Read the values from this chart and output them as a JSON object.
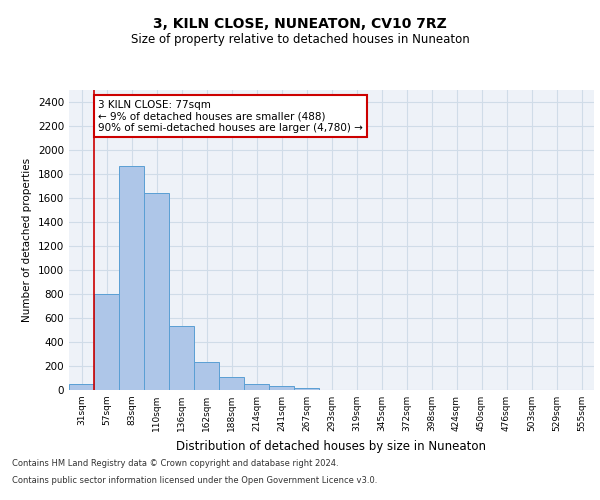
{
  "title": "3, KILN CLOSE, NUNEATON, CV10 7RZ",
  "subtitle": "Size of property relative to detached houses in Nuneaton",
  "xlabel": "Distribution of detached houses by size in Nuneaton",
  "ylabel": "Number of detached properties",
  "bin_labels": [
    "31sqm",
    "57sqm",
    "83sqm",
    "110sqm",
    "136sqm",
    "162sqm",
    "188sqm",
    "214sqm",
    "241sqm",
    "267sqm",
    "293sqm",
    "319sqm",
    "345sqm",
    "372sqm",
    "398sqm",
    "424sqm",
    "450sqm",
    "476sqm",
    "503sqm",
    "529sqm",
    "555sqm"
  ],
  "bar_heights": [
    50,
    800,
    1870,
    1640,
    530,
    235,
    105,
    50,
    35,
    20,
    0,
    0,
    0,
    0,
    0,
    0,
    0,
    0,
    0,
    0,
    0
  ],
  "bar_color": "#aec6e8",
  "bar_edge_color": "#5a9fd4",
  "annotation_text": "3 KILN CLOSE: 77sqm\n← 9% of detached houses are smaller (488)\n90% of semi-detached houses are larger (4,780) →",
  "annotation_box_color": "#ffffff",
  "annotation_box_edge": "#cc0000",
  "red_line_color": "#cc0000",
  "grid_color": "#d0dce8",
  "background_color": "#eef2f8",
  "ylim": [
    0,
    2500
  ],
  "yticks": [
    0,
    200,
    400,
    600,
    800,
    1000,
    1200,
    1400,
    1600,
    1800,
    2000,
    2200,
    2400
  ],
  "footer_line1": "Contains HM Land Registry data © Crown copyright and database right 2024.",
  "footer_line2": "Contains public sector information licensed under the Open Government Licence v3.0."
}
